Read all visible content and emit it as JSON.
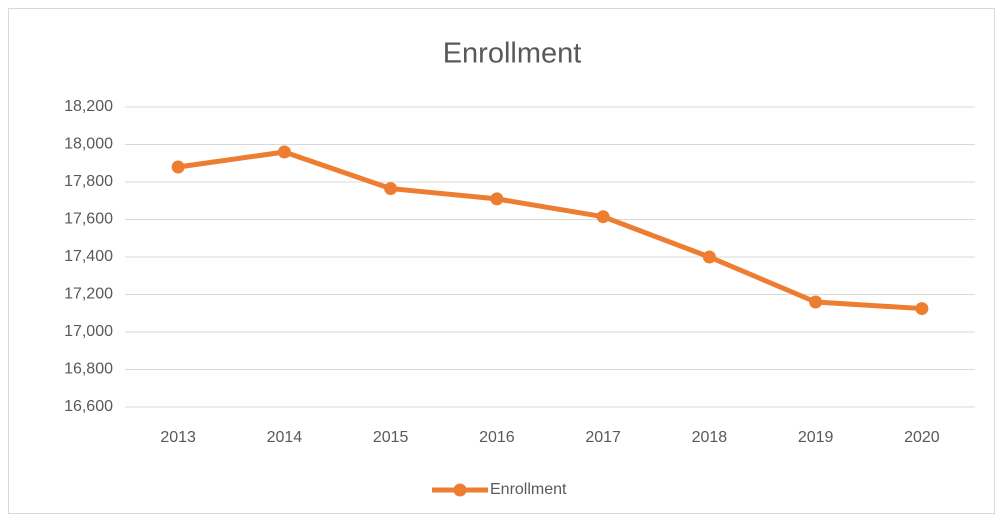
{
  "chart_data": {
    "type": "line",
    "title": "Enrollment",
    "categories": [
      "2013",
      "2014",
      "2015",
      "2016",
      "2017",
      "2018",
      "2019",
      "2020"
    ],
    "series": [
      {
        "name": "Enrollment",
        "color": "#ed7d31",
        "values": [
          17880,
          17960,
          17765,
          17710,
          17615,
          17400,
          17160,
          17125
        ]
      }
    ],
    "ylim": [
      16600,
      18200
    ],
    "yticks": [
      {
        "value": 16600,
        "label": "16,600"
      },
      {
        "value": 16800,
        "label": "16,800"
      },
      {
        "value": 17000,
        "label": "17,000"
      },
      {
        "value": 17200,
        "label": "17,200"
      },
      {
        "value": 17400,
        "label": "17,400"
      },
      {
        "value": 17600,
        "label": "17,600"
      },
      {
        "value": 17800,
        "label": "17,800"
      },
      {
        "value": 18000,
        "label": "18,000"
      },
      {
        "value": 18200,
        "label": "18,200"
      }
    ],
    "grid": true,
    "legend": "bottom"
  }
}
